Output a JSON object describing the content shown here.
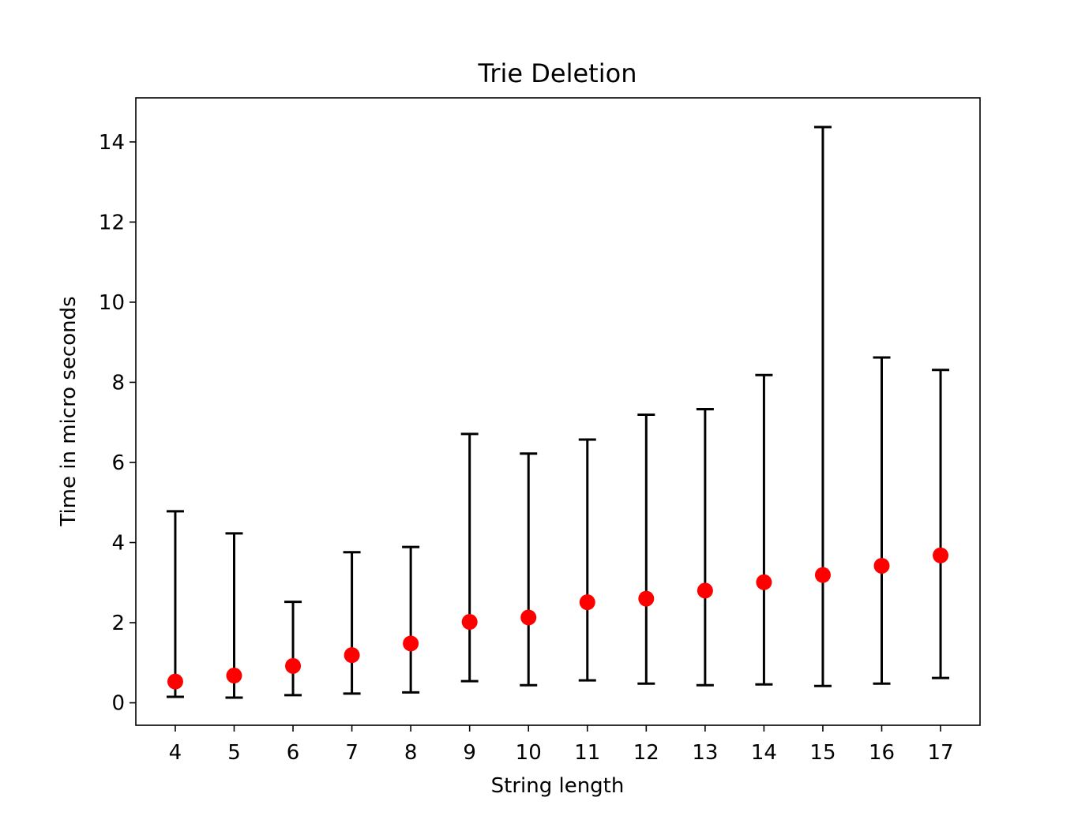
{
  "chart_data": {
    "type": "scatter",
    "title": "Trie Deletion",
    "xlabel": "String length",
    "ylabel": "Time in micro seconds",
    "x": [
      4,
      5,
      6,
      7,
      8,
      9,
      10,
      11,
      12,
      13,
      14,
      15,
      16,
      17
    ],
    "y": [
      0.53,
      0.68,
      0.92,
      1.19,
      1.48,
      2.02,
      2.13,
      2.51,
      2.6,
      2.8,
      3.01,
      3.19,
      3.42,
      3.68
    ],
    "err_low": [
      0.15,
      0.13,
      0.19,
      0.23,
      0.26,
      0.54,
      0.44,
      0.56,
      0.48,
      0.44,
      0.46,
      0.42,
      0.48,
      0.62
    ],
    "err_high": [
      4.78,
      4.23,
      2.52,
      3.76,
      3.89,
      6.71,
      6.22,
      6.57,
      7.19,
      7.33,
      8.18,
      14.37,
      8.62,
      8.31
    ],
    "xticks": [
      "4",
      "5",
      "6",
      "7",
      "8",
      "9",
      "10",
      "11",
      "12",
      "13",
      "14",
      "15",
      "16",
      "17"
    ],
    "yticks": [
      "0",
      "2",
      "4",
      "6",
      "8",
      "10",
      "12",
      "14"
    ],
    "ylim": [
      -0.56,
      15.1
    ],
    "xlim": [
      3.33,
      17.67
    ],
    "marker_color": "#ff0000",
    "errorbar_color": "#000000",
    "grid": false,
    "legend": "none"
  }
}
